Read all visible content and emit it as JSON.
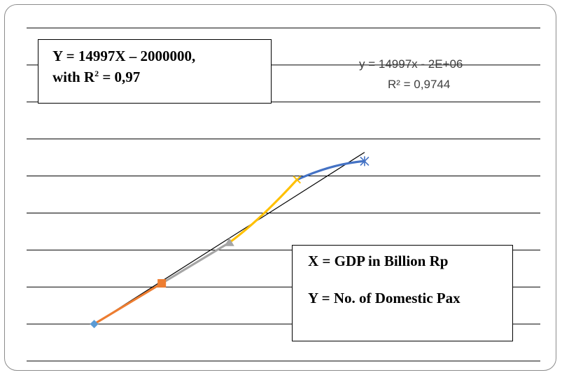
{
  "chart_data": {
    "type": "scatter",
    "series": [
      {
        "marker": "diamond",
        "color": "#5b9bd5",
        "points": [
          [
            1,
            1
          ]
        ]
      },
      {
        "marker": "square",
        "color": "#ed7d31",
        "points": [
          [
            2,
            2.1
          ]
        ]
      },
      {
        "marker": "triangle",
        "color": "#a5a5a5",
        "points": [
          [
            3,
            3.2
          ]
        ]
      },
      {
        "marker": "x",
        "color": "#ffc000",
        "points": [
          [
            4,
            4.9
          ]
        ]
      },
      {
        "marker": "star",
        "color": "#4472c4",
        "points": [
          [
            5,
            5.4
          ]
        ]
      }
    ],
    "trendline": {
      "equation": "y = 14997x - 2E+06",
      "r_squared": "R² = 0,9744",
      "color": "#000000"
    },
    "grid": true,
    "axes_visible": false
  },
  "annotation_box": {
    "line1": "Y = 14997X – 2000000,",
    "line2_prefix": "with R",
    "line2_sup": "2",
    "line2_suffix": " = 0,97"
  },
  "legend_box": {
    "x_def": "X = GDP in Billion Rp",
    "y_def": "Y = No. of Domestic Pax"
  }
}
